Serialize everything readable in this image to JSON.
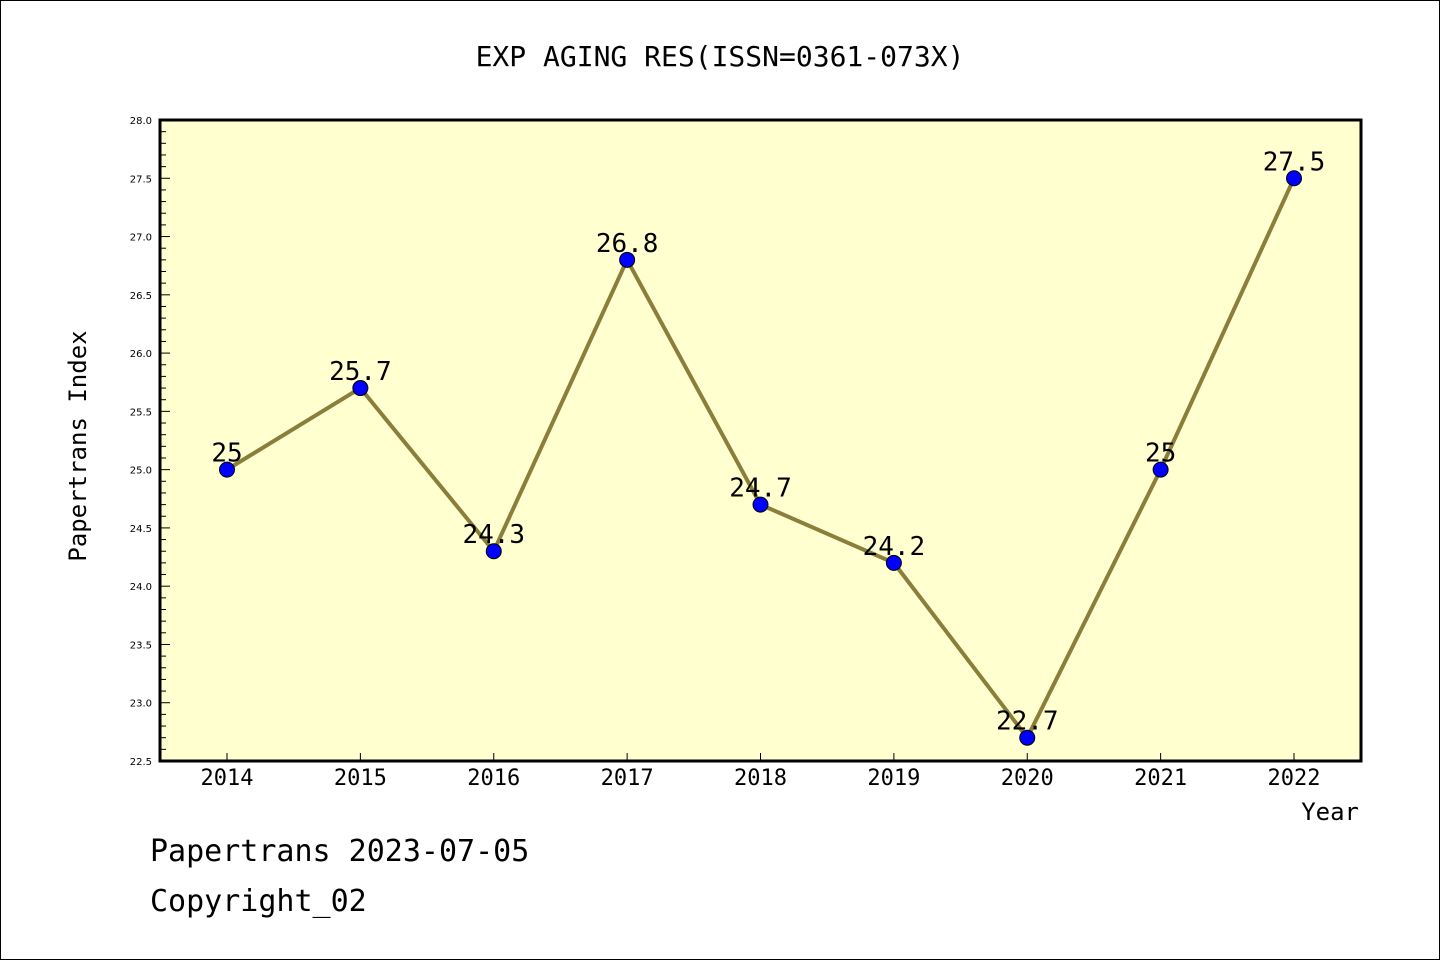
{
  "chart_data": {
    "type": "line",
    "title": "EXP AGING RES(ISSN=0361-073X)",
    "xlabel": "Year",
    "ylabel": "Papertrans Index",
    "categories": [
      "2014",
      "2015",
      "2016",
      "2017",
      "2018",
      "2019",
      "2020",
      "2021",
      "2022"
    ],
    "series": [
      {
        "values": [
          25,
          25.7,
          24.3,
          26.8,
          24.7,
          24.2,
          22.7,
          25,
          27.5
        ],
        "labels": [
          "25",
          "25.7",
          "24.3",
          "26.8",
          "24.7",
          "24.2",
          "22.7",
          "25",
          "27.5"
        ]
      }
    ],
    "ylim": [
      22.5,
      28.0
    ],
    "yticks": [
      "22.5",
      "23.0",
      "23.5",
      "24.0",
      "24.5",
      "25.0",
      "25.5",
      "26.0",
      "26.5",
      "27.0",
      "27.5",
      "28.0"
    ],
    "grid": false,
    "legend": "none",
    "colors": {
      "plot_background": "#FFFFD0",
      "line": "#8B7D3A",
      "marker": "#0000FF"
    }
  },
  "footer": {
    "date_text": "Papertrans 2023-07-05",
    "copyright_text": "Copyright_02"
  }
}
